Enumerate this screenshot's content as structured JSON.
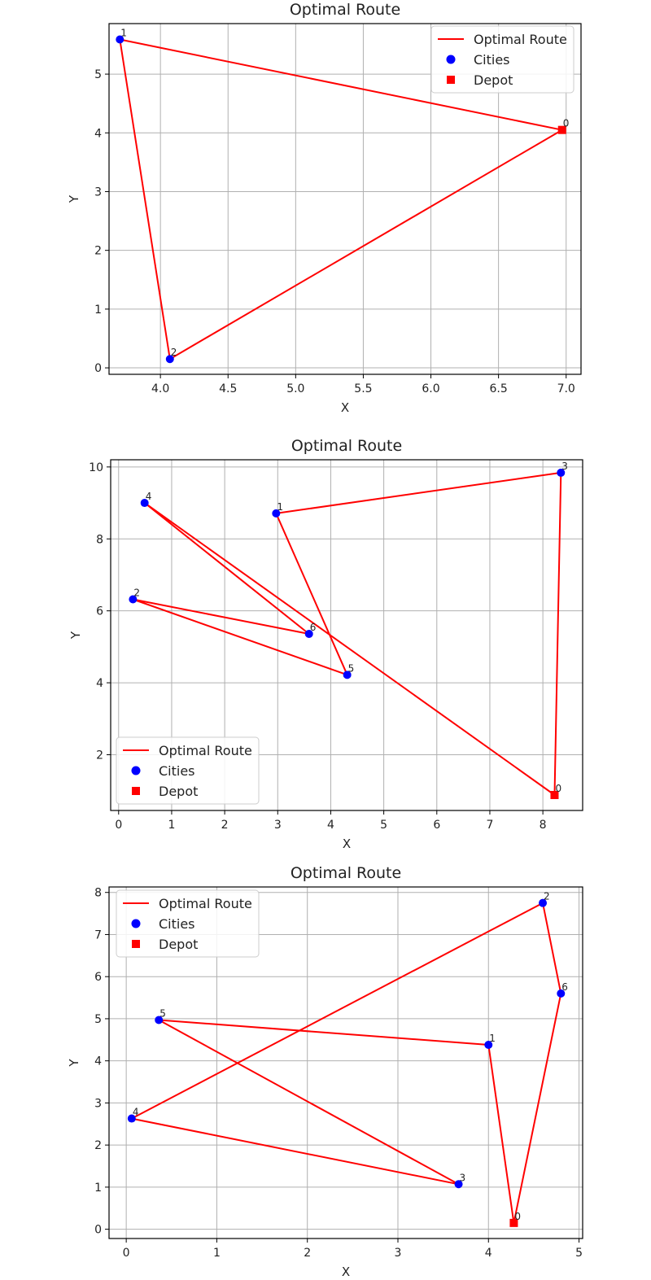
{
  "chart_data": [
    {
      "type": "line",
      "title": "Optimal Route",
      "xlabel": "X",
      "ylabel": "Y",
      "xlim": [
        3.62,
        7.11
      ],
      "ylim": [
        -0.11,
        5.86
      ],
      "xticks": [
        4.0,
        4.5,
        5.0,
        5.5,
        6.0,
        6.5,
        7.0
      ],
      "xtick_labels": [
        "4.0",
        "4.5",
        "5.0",
        "5.5",
        "6.0",
        "6.5",
        "7.0"
      ],
      "yticks": [
        0,
        1,
        2,
        3,
        4,
        5
      ],
      "ytick_labels": [
        "0",
        "1",
        "2",
        "3",
        "4",
        "5"
      ],
      "grid": true,
      "legend_position": "top-right",
      "legend": {
        "route": "Optimal Route",
        "cities": "Cities",
        "depot": "Depot"
      },
      "colors": {
        "route": "#ff0000",
        "cities": "#0000ff",
        "depot": "#ff0000"
      },
      "depot": {
        "label": "0",
        "x": 6.97,
        "y": 4.05
      },
      "cities": [
        {
          "label": "1",
          "x": 3.7,
          "y": 5.59
        },
        {
          "label": "2",
          "x": 4.07,
          "y": 0.15
        }
      ],
      "route": [
        0,
        1,
        2,
        0
      ]
    },
    {
      "type": "line",
      "title": "Optimal Route",
      "xlabel": "X",
      "ylabel": "Y",
      "xlim": [
        -0.15,
        8.75
      ],
      "ylim": [
        0.45,
        10.2
      ],
      "xticks": [
        0,
        1,
        2,
        3,
        4,
        5,
        6,
        7,
        8
      ],
      "xtick_labels": [
        "0",
        "1",
        "2",
        "3",
        "4",
        "5",
        "6",
        "7",
        "8"
      ],
      "yticks": [
        2,
        4,
        6,
        8,
        10
      ],
      "ytick_labels": [
        "2",
        "4",
        "6",
        "8",
        "10"
      ],
      "grid": true,
      "legend_position": "bottom-left",
      "legend": {
        "route": "Optimal Route",
        "cities": "Cities",
        "depot": "Depot"
      },
      "colors": {
        "route": "#ff0000",
        "cities": "#0000ff",
        "depot": "#ff0000"
      },
      "depot": {
        "label": "0",
        "x": 8.22,
        "y": 0.88
      },
      "cities": [
        {
          "label": "1",
          "x": 2.97,
          "y": 8.71
        },
        {
          "label": "2",
          "x": 0.27,
          "y": 6.32
        },
        {
          "label": "3",
          "x": 8.34,
          "y": 9.84
        },
        {
          "label": "4",
          "x": 0.49,
          "y": 9.0
        },
        {
          "label": "5",
          "x": 4.31,
          "y": 4.22
        },
        {
          "label": "6",
          "x": 3.59,
          "y": 5.36
        }
      ],
      "route": [
        0,
        4,
        6,
        2,
        5,
        1,
        3,
        0
      ]
    },
    {
      "type": "line",
      "title": "Optimal Route",
      "xlabel": "X",
      "ylabel": "Y",
      "xlim": [
        -0.19,
        5.04
      ],
      "ylim": [
        -0.22,
        8.13
      ],
      "xticks": [
        0,
        1,
        2,
        3,
        4,
        5
      ],
      "xtick_labels": [
        "0",
        "1",
        "2",
        "3",
        "4",
        "5"
      ],
      "yticks": [
        0,
        1,
        2,
        3,
        4,
        5,
        6,
        7,
        8
      ],
      "ytick_labels": [
        "0",
        "1",
        "2",
        "3",
        "4",
        "5",
        "6",
        "7",
        "8"
      ],
      "grid": true,
      "legend_position": "top-left",
      "legend": {
        "route": "Optimal Route",
        "cities": "Cities",
        "depot": "Depot"
      },
      "colors": {
        "route": "#ff0000",
        "cities": "#0000ff",
        "depot": "#ff0000"
      },
      "depot": {
        "label": "0",
        "x": 4.28,
        "y": 0.15
      },
      "cities": [
        {
          "label": "1",
          "x": 4.0,
          "y": 4.38
        },
        {
          "label": "2",
          "x": 4.6,
          "y": 7.75
        },
        {
          "label": "3",
          "x": 3.67,
          "y": 1.07
        },
        {
          "label": "4",
          "x": 0.06,
          "y": 2.63
        },
        {
          "label": "5",
          "x": 0.36,
          "y": 4.97
        },
        {
          "label": "6",
          "x": 4.8,
          "y": 5.6
        }
      ],
      "route": [
        0,
        6,
        2,
        4,
        3,
        5,
        1,
        0
      ]
    }
  ]
}
